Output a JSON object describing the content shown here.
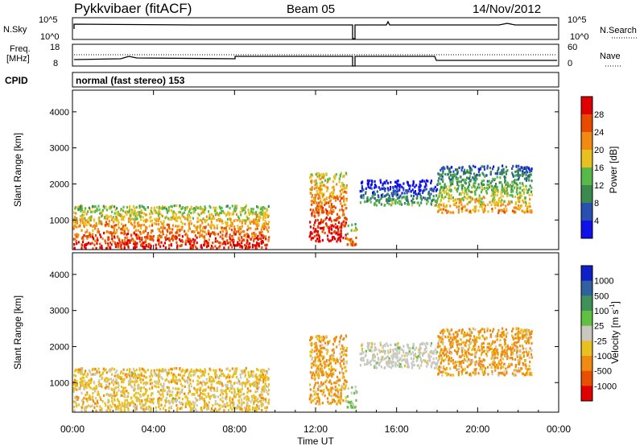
{
  "header": {
    "station": "Pykkvibaer (fitACF)",
    "beam": "Beam 05",
    "date": "14/Nov/2012"
  },
  "strips": {
    "nsky_label": "N.Sky",
    "nsky_ticks": [
      "10^5",
      "10^0"
    ],
    "nsearch_label": "N.Search",
    "nsearch_ticks": [
      "10^5",
      "10^0"
    ],
    "freq_label_line1": "Freq.",
    "freq_label_line2": "[MHz]",
    "freq_ticks": [
      "18",
      "8"
    ],
    "nave_label": "Nave",
    "nave_ticks": [
      "60",
      "0"
    ],
    "cpid_label": "CPID",
    "cpid_text": "normal (fast stereo) 153"
  },
  "panels": {
    "ylabel": "Slant Range [km]",
    "xlabel": "Time UT",
    "xticks": [
      "00:00",
      "04:00",
      "08:00",
      "12:00",
      "16:00",
      "20:00",
      "00:00"
    ],
    "yticks": [
      "1000",
      "2000",
      "3000",
      "4000"
    ]
  },
  "colorbars": {
    "power": {
      "label": "Power [dB]",
      "ticks": [
        "4",
        "8",
        "12",
        "16",
        "20",
        "24",
        "28"
      ],
      "colors": [
        "#1010e8",
        "#2850b0",
        "#3a8a50",
        "#58b848",
        "#e8c020",
        "#f08a10",
        "#e84a00",
        "#e00000"
      ]
    },
    "velocity": {
      "label": "Velocity [m s",
      "label_sup": "-1",
      "label_end": "]",
      "ticks": [
        "1000",
        "500",
        "100",
        "25",
        "-25",
        "-100",
        "-500",
        "-1000"
      ],
      "colors": [
        "#1020c8",
        "#3060a0",
        "#40905a",
        "#60c040",
        "#c8c8c0",
        "#e8c020",
        "#f08a10",
        "#e85000",
        "#e00000"
      ]
    }
  },
  "chart_data": {
    "type": "heatmap",
    "title": "Pykkvibaer (fitACF)",
    "subtitle": "Beam 05",
    "xlabel": "Time UT",
    "ylabel": "Slant Range [km]",
    "xlim": [
      "00:00",
      "24:00"
    ],
    "ylim": [
      180,
      4600
    ],
    "power_scale_db": [
      0,
      32
    ],
    "velocity_scale_ms": [
      -1000,
      1000
    ],
    "scatter_regions": [
      {
        "start": "00:00",
        "end": "09:40",
        "range_km": [
          200,
          1400
        ],
        "power_db": 24,
        "velocity_ms": -60
      },
      {
        "start": "11:40",
        "end": "13:30",
        "range_km": [
          400,
          2300
        ],
        "power_db": 26,
        "velocity_ms": -120
      },
      {
        "start": "13:30",
        "end": "14:00",
        "range_km": [
          300,
          900
        ],
        "power_db": 20,
        "velocity_ms": 40
      },
      {
        "start": "14:10",
        "end": "18:00",
        "range_km": [
          1400,
          2100
        ],
        "power_db": 8,
        "velocity_ms": 0
      },
      {
        "start": "18:00",
        "end": "22:40",
        "range_km": [
          1200,
          2500
        ],
        "power_db": 16,
        "velocity_ms": -150
      }
    ]
  }
}
